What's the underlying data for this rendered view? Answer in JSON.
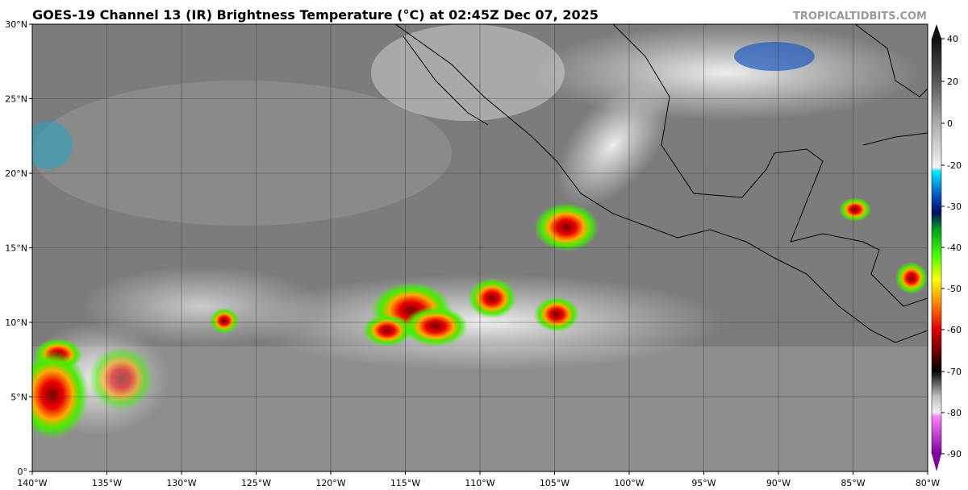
{
  "header": {
    "title": "GOES-19 Channel 13 (IR) Brightness Temperature (°C) at 02:45Z Dec 07, 2025",
    "credit": "TROPICALTIDBITS.COM"
  },
  "map": {
    "lon_labels": [
      "140°W",
      "135°W",
      "130°W",
      "125°W",
      "120°W",
      "115°W",
      "110°W",
      "105°W",
      "100°W",
      "95°W",
      "90°W",
      "85°W",
      "80°W"
    ],
    "lat_labels": [
      "0°",
      "5°N",
      "10°N",
      "15°N",
      "20°N",
      "25°N",
      "30°N"
    ]
  },
  "colorbar": {
    "ticks": [
      40,
      20,
      0,
      -20,
      -30,
      -40,
      -50,
      -60,
      -70,
      -80,
      -90
    ]
  }
}
